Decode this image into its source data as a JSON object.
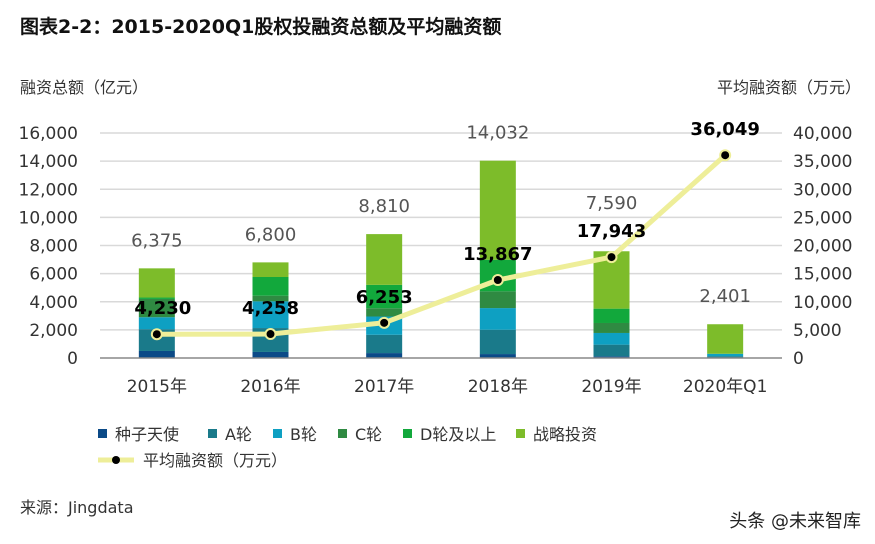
{
  "title": "图表2-2：2015-2020Q1股权投融资总额及平均融资额",
  "source": "来源：Jingdata",
  "watermark": "头条 @未来智库",
  "chart_data": {
    "type": "bar",
    "stacked": true,
    "title": "图表2-2：2015-2020Q1股权投融资总额及平均融资额",
    "ylabel": "融资总额（亿元）",
    "y2label": "平均融资额（万元）",
    "ylim": [
      0,
      16000
    ],
    "y2lim": [
      0,
      40000
    ],
    "yticks": [
      "0",
      "2,000",
      "4,000",
      "6,000",
      "8,000",
      "10,000",
      "12,000",
      "14,000",
      "16,000"
    ],
    "y2ticks": [
      "0",
      "5,000",
      "10,000",
      "15,000",
      "20,000",
      "25,000",
      "30,000",
      "35,000",
      "40,000"
    ],
    "grid": true,
    "legend_position": "bottom",
    "categories": [
      "2015年",
      "2016年",
      "2017年",
      "2018年",
      "2019年",
      "2020年Q1"
    ],
    "series": [
      {
        "name": "种子天使",
        "color": "#0b4a87",
        "values": [
          500,
          430,
          350,
          280,
          120,
          20
        ]
      },
      {
        "name": "A轮",
        "color": "#1a7a8a",
        "values": [
          1550,
          1700,
          1300,
          1730,
          830,
          110
        ]
      },
      {
        "name": "B轮",
        "color": "#0ea0c2",
        "values": [
          850,
          1900,
          1300,
          1540,
          830,
          170
        ]
      },
      {
        "name": "C轮",
        "color": "#2f8a42",
        "values": [
          1300,
          400,
          590,
          1190,
          710,
          0
        ]
      },
      {
        "name": "D轮及以上",
        "color": "#12a83c",
        "values": [
          100,
          1330,
          1660,
          2250,
          1020,
          0
        ]
      },
      {
        "name": "战略投资",
        "color": "#7dbc2a",
        "values": [
          2075,
          1040,
          3610,
          7042,
          4080,
          2101
        ]
      }
    ],
    "totals": [
      "6,375",
      "6,800",
      "8,810",
      "14,032",
      "7,590",
      "2,401"
    ],
    "total_values": [
      6375,
      6800,
      8810,
      14032,
      7590,
      2401
    ],
    "line": {
      "name": "平均融资额（万元）",
      "axis": "right",
      "color": "#eeee99",
      "marker_color": "#000000",
      "values": [
        4230,
        4258,
        6253,
        13867,
        17943,
        36049
      ],
      "labels": [
        "4,230",
        "4,258",
        "6,253",
        "13,867",
        "17,943",
        "36,049"
      ]
    }
  }
}
